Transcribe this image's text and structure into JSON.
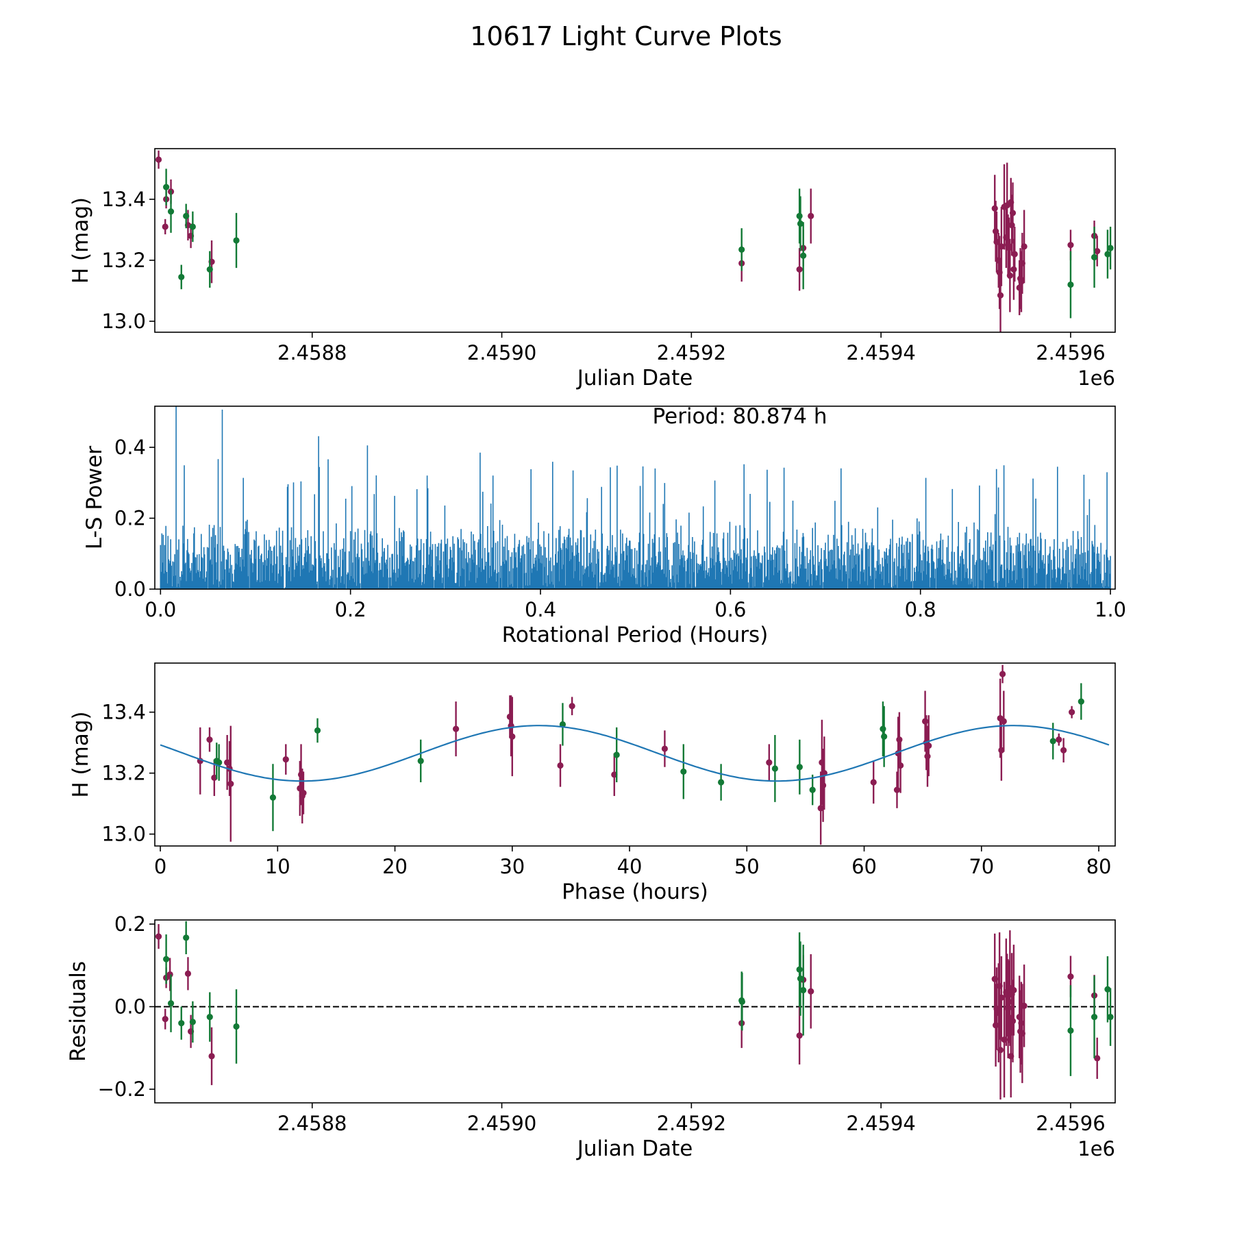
{
  "title": "10617 Light Curve Plots",
  "colors": {
    "series_a": "#8b1d52",
    "series_b": "#137a36",
    "line": "#1f77b4",
    "zero_line": "#000000"
  },
  "chart_data": [
    {
      "id": "lightcurve",
      "type": "scatter",
      "title": "",
      "xlabel": "Julian Date",
      "ylabel": "H (mag)",
      "x_offset_label": "1e6",
      "xlim": [
        2458634,
        2459647
      ],
      "ylim": [
        12.964,
        13.566
      ],
      "xticks": [
        2458800,
        2459000,
        2459200,
        2459400,
        2459600
      ],
      "xtick_labels": [
        "2.4588",
        "2.4590",
        "2.4592",
        "2.4594",
        "2.4596"
      ],
      "yticks": [
        13.0,
        13.2,
        13.4
      ],
      "ytick_labels": [
        "13.0",
        "13.2",
        "13.4"
      ],
      "series": [
        {
          "name": "purple",
          "color_key": "series_a",
          "points": [
            [
              2458638,
              13.53,
              0.03
            ],
            [
              2458645,
              13.31,
              0.025
            ],
            [
              2458646,
              13.4,
              0.03
            ],
            [
              2458651,
              13.425,
              0.04
            ],
            [
              2458669,
              13.315,
              0.05
            ],
            [
              2458672,
              13.28,
              0.04
            ],
            [
              2458694,
              13.195,
              0.07
            ],
            [
              2459253,
              13.19,
              0.06
            ],
            [
              2459314,
              13.17,
              0.07
            ],
            [
              2459318,
              13.24,
              0.06
            ],
            [
              2459326,
              13.345,
              0.09
            ],
            [
              2459520,
              13.37,
              0.11
            ],
            [
              2459521,
              13.295,
              0.1
            ],
            [
              2459522,
              13.26,
              0.1
            ],
            [
              2459524,
              13.2,
              0.09
            ],
            [
              2459525,
              13.16,
              0.12
            ],
            [
              2459526,
              13.085,
              0.12
            ],
            [
              2459527,
              13.245,
              0.13
            ],
            [
              2459530,
              13.375,
              0.14
            ],
            [
              2459532,
              13.275,
              0.1
            ],
            [
              2459533,
              13.38,
              0.14
            ],
            [
              2459534,
              13.25,
              0.1
            ],
            [
              2459535,
              13.24,
              0.1
            ],
            [
              2459536,
              13.15,
              0.12
            ],
            [
              2459537,
              13.39,
              0.08
            ],
            [
              2459538,
              13.315,
              0.1
            ],
            [
              2459539,
              13.355,
              0.1
            ],
            [
              2459540,
              13.17,
              0.1
            ],
            [
              2459541,
              13.22,
              0.09
            ],
            [
              2459546,
              13.11,
              0.09
            ],
            [
              2459547,
              13.14,
              0.1
            ],
            [
              2459548,
              13.13,
              0.1
            ],
            [
              2459549,
              13.19,
              0.1
            ],
            [
              2459551,
              13.245,
              0.12
            ],
            [
              2459600,
              13.25,
              0.05
            ],
            [
              2459625,
              13.28,
              0.05
            ],
            [
              2459628,
              13.23,
              0.05
            ]
          ]
        },
        {
          "name": "green",
          "color_key": "series_b",
          "points": [
            [
              2458646,
              13.44,
              0.06
            ],
            [
              2458651,
              13.36,
              0.07
            ],
            [
              2458662,
              13.145,
              0.04
            ],
            [
              2458667,
              13.345,
              0.04
            ],
            [
              2458674,
              13.31,
              0.05
            ],
            [
              2458692,
              13.17,
              0.06
            ],
            [
              2458720,
              13.265,
              0.09
            ],
            [
              2459253,
              13.235,
              0.07
            ],
            [
              2459314,
              13.345,
              0.09
            ],
            [
              2459315,
              13.32,
              0.09
            ],
            [
              2459318,
              13.215,
              0.11
            ],
            [
              2459600,
              13.12,
              0.11
            ],
            [
              2459625,
              13.21,
              0.1
            ],
            [
              2459639,
              13.22,
              0.08
            ],
            [
              2459642,
              13.24,
              0.07
            ]
          ]
        }
      ]
    },
    {
      "id": "periodogram",
      "type": "line",
      "xlabel": "Rotational Period (Hours)",
      "ylabel": "L-S Power",
      "xlim": [
        -0.006,
        1.005
      ],
      "ylim": [
        0.0,
        0.516
      ],
      "xticks": [
        0.0,
        0.2,
        0.4,
        0.6,
        0.8,
        1.0
      ],
      "xtick_labels": [
        "0.0",
        "0.2",
        "0.4",
        "0.6",
        "0.8",
        "1.0"
      ],
      "yticks": [
        0.0,
        0.2,
        0.4
      ],
      "ytick_labels": [
        "0.0",
        "0.2",
        "0.4"
      ],
      "annotation": "Period: 80.874 h",
      "x_range": [
        0.0,
        1.0
      ],
      "noise_floor_max": 0.2,
      "peak_envelope": [
        [
          0.0,
          0.52
        ],
        [
          0.05,
          0.52
        ],
        [
          0.1,
          0.5
        ],
        [
          0.15,
          0.45
        ],
        [
          0.2,
          0.43
        ],
        [
          0.3,
          0.39
        ],
        [
          0.4,
          0.38
        ],
        [
          0.5,
          0.37
        ],
        [
          0.6,
          0.36
        ],
        [
          0.7,
          0.36
        ],
        [
          0.8,
          0.35
        ],
        [
          0.9,
          0.38
        ],
        [
          1.0,
          0.33
        ]
      ]
    },
    {
      "id": "phase",
      "type": "scatter",
      "xlabel": "Phase (hours)",
      "ylabel": "H (mag)",
      "xlim": [
        -0.47,
        81.4
      ],
      "ylim": [
        12.961,
        13.561
      ],
      "xticks": [
        0,
        10,
        20,
        30,
        40,
        50,
        60,
        70,
        80
      ],
      "xtick_labels": [
        "0",
        "10",
        "20",
        "30",
        "40",
        "50",
        "60",
        "70",
        "80"
      ],
      "yticks": [
        13.0,
        13.2,
        13.4
      ],
      "ytick_labels": [
        "13.0",
        "13.2",
        "13.4"
      ],
      "model": {
        "period_hours": 80.874,
        "mean": 13.265,
        "amplitude": 0.091,
        "peak_phase_hours": 32.3
      },
      "series": [
        {
          "name": "purple",
          "color_key": "series_a",
          "points": [
            [
              3.4,
              13.24,
              0.11
            ],
            [
              4.2,
              13.31,
              0.04
            ],
            [
              4.6,
              13.185,
              0.06
            ],
            [
              5.7,
              13.235,
              0.09
            ],
            [
              5.9,
              13.215,
              0.09
            ],
            [
              6.0,
              13.165,
              0.19
            ],
            [
              10.7,
              13.245,
              0.05
            ],
            [
              11.9,
              13.15,
              0.09
            ],
            [
              12.0,
              13.195,
              0.1
            ],
            [
              12.1,
              13.125,
              0.09
            ],
            [
              12.2,
              13.135,
              0.07
            ],
            [
              25.2,
              13.345,
              0.09
            ],
            [
              29.8,
              13.385,
              0.07
            ],
            [
              29.9,
              13.355,
              0.1
            ],
            [
              30.0,
              13.32,
              0.13
            ],
            [
              34.1,
              13.225,
              0.07
            ],
            [
              35.1,
              13.42,
              0.03
            ],
            [
              38.7,
              13.195,
              0.07
            ],
            [
              43.0,
              13.28,
              0.06
            ],
            [
              51.9,
              13.235,
              0.06
            ],
            [
              56.3,
              13.085,
              0.12
            ],
            [
              56.4,
              13.235,
              0.14
            ],
            [
              56.5,
              13.16,
              0.12
            ],
            [
              56.6,
              13.2,
              0.12
            ],
            [
              60.8,
              13.17,
              0.07
            ],
            [
              62.8,
              13.145,
              0.06
            ],
            [
              62.9,
              13.265,
              0.12
            ],
            [
              63.0,
              13.31,
              0.09
            ],
            [
              63.1,
              13.225,
              0.09
            ],
            [
              65.2,
              13.37,
              0.1
            ],
            [
              65.3,
              13.3,
              0.09
            ],
            [
              65.4,
              13.255,
              0.1
            ],
            [
              65.5,
              13.29,
              0.1
            ],
            [
              71.6,
              13.38,
              0.13
            ],
            [
              71.7,
              13.275,
              0.1
            ],
            [
              71.8,
              13.525,
              0.03
            ],
            [
              71.9,
              13.37,
              0.1
            ],
            [
              76.6,
              13.31,
              0.02
            ],
            [
              77.0,
              13.275,
              0.04
            ],
            [
              77.7,
              13.4,
              0.02
            ]
          ]
        },
        {
          "name": "green",
          "color_key": "series_b",
          "points": [
            [
              4.8,
              13.24,
              0.06
            ],
            [
              5.0,
              13.235,
              0.06
            ],
            [
              9.6,
              13.12,
              0.11
            ],
            [
              13.4,
              13.34,
              0.04
            ],
            [
              22.2,
              13.24,
              0.07
            ],
            [
              34.3,
              13.36,
              0.07
            ],
            [
              38.9,
              13.26,
              0.09
            ],
            [
              44.6,
              13.205,
              0.09
            ],
            [
              47.8,
              13.17,
              0.06
            ],
            [
              52.4,
              13.215,
              0.11
            ],
            [
              54.5,
              13.22,
              0.09
            ],
            [
              55.6,
              13.145,
              0.05
            ],
            [
              61.6,
              13.345,
              0.09
            ],
            [
              61.7,
              13.32,
              0.1
            ],
            [
              76.1,
              13.305,
              0.06
            ],
            [
              78.5,
              13.435,
              0.06
            ]
          ]
        }
      ]
    },
    {
      "id": "residuals",
      "type": "scatter",
      "xlabel": "Julian Date",
      "ylabel": "Residuals",
      "x_offset_label": "1e6",
      "xlim": [
        2458634,
        2459647
      ],
      "ylim": [
        -0.233,
        0.21
      ],
      "xticks": [
        2458800,
        2459000,
        2459200,
        2459400,
        2459600
      ],
      "xtick_labels": [
        "2.4588",
        "2.4590",
        "2.4592",
        "2.4594",
        "2.4596"
      ],
      "yticks": [
        -0.2,
        0.0,
        0.2
      ],
      "ytick_labels": [
        "−0.2",
        "0.0",
        "0.2"
      ],
      "reference_line": 0.0,
      "series": [
        {
          "name": "purple",
          "color_key": "series_a",
          "points": [
            [
              2458638,
              0.17,
              0.03
            ],
            [
              2458645,
              -0.03,
              0.025
            ],
            [
              2458646,
              0.07,
              0.025
            ],
            [
              2458650,
              0.078,
              0.04
            ],
            [
              2458669,
              0.08,
              0.04
            ],
            [
              2458672,
              -0.06,
              0.04
            ],
            [
              2458694,
              -0.12,
              0.07
            ],
            [
              2459253,
              -0.04,
              0.06
            ],
            [
              2459314,
              -0.07,
              0.07
            ],
            [
              2459318,
              0.065,
              0.06
            ],
            [
              2459326,
              0.037,
              0.09
            ],
            [
              2459520,
              0.067,
              0.11
            ],
            [
              2459521,
              -0.045,
              0.1
            ],
            [
              2459522,
              -0.005,
              0.1
            ],
            [
              2459524,
              -0.015,
              0.12
            ],
            [
              2459525,
              0.05,
              0.13
            ],
            [
              2459526,
              -0.105,
              0.12
            ],
            [
              2459527,
              0.022,
              0.1
            ],
            [
              2459530,
              -0.08,
              0.14
            ],
            [
              2459532,
              0.035,
              0.13
            ],
            [
              2459533,
              0.028,
              0.1
            ],
            [
              2459534,
              -0.005,
              0.12
            ],
            [
              2459535,
              0.012,
              0.1
            ],
            [
              2459536,
              0.045,
              0.14
            ],
            [
              2459537,
              -0.12,
              0.1
            ],
            [
              2459538,
              0.03,
              0.1
            ],
            [
              2459539,
              -0.035,
              0.1
            ],
            [
              2459540,
              0.04,
              0.11
            ],
            [
              2459546,
              -0.025,
              0.1
            ],
            [
              2459547,
              -0.06,
              0.1
            ],
            [
              2459548,
              -0.04,
              0.1
            ],
            [
              2459549,
              -0.065,
              0.12
            ],
            [
              2459551,
              0.002,
              0.1
            ],
            [
              2459600,
              0.073,
              0.05
            ],
            [
              2459625,
              0.027,
              0.05
            ],
            [
              2459628,
              -0.125,
              0.05
            ]
          ]
        },
        {
          "name": "green",
          "color_key": "series_b",
          "points": [
            [
              2458646,
              0.115,
              0.06
            ],
            [
              2458651,
              0.008,
              0.07
            ],
            [
              2458662,
              -0.04,
              0.04
            ],
            [
              2458667,
              0.167,
              0.04
            ],
            [
              2458674,
              -0.037,
              0.05
            ],
            [
              2458692,
              -0.025,
              0.06
            ],
            [
              2458720,
              -0.048,
              0.09
            ],
            [
              2459253,
              0.015,
              0.07
            ],
            [
              2459253.5,
              0.012,
              0.07
            ],
            [
              2459314,
              0.09,
              0.09
            ],
            [
              2459315,
              0.068,
              0.09
            ],
            [
              2459318,
              0.04,
              0.11
            ],
            [
              2459600,
              -0.058,
              0.11
            ],
            [
              2459625,
              -0.025,
              0.1
            ],
            [
              2459639,
              0.042,
              0.08
            ],
            [
              2459642,
              -0.025,
              0.07
            ]
          ]
        }
      ]
    }
  ]
}
